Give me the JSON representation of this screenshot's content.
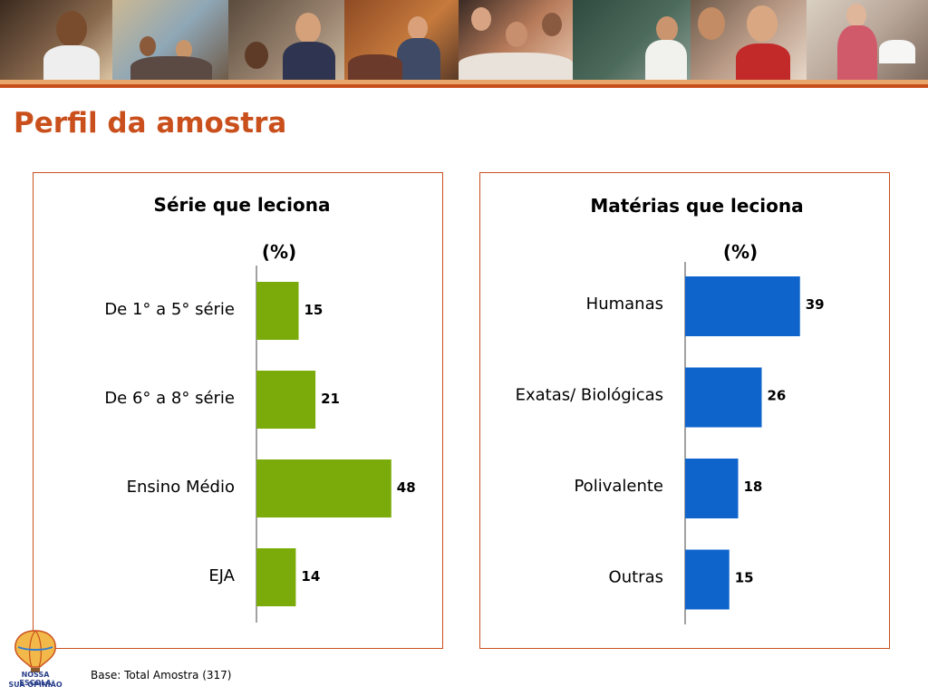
{
  "slide": {
    "title": "Perfil da amostra",
    "base_note": "Base: Total Amostra (317)"
  },
  "logo": {
    "icon": "hot-air-balloon-icon",
    "line1": "NOSSA ESCOLA",
    "line2": "SUA OPINIÃO"
  },
  "colors": {
    "accent": "#c9501c",
    "green_bar": "#7aab0a",
    "blue_bar": "#0f64cc"
  },
  "chart_data": [
    {
      "type": "bar",
      "orientation": "horizontal",
      "title": "Série que leciona",
      "unit": "(%)",
      "categories": [
        "De 1° a 5° série",
        "De 6° a 8° série",
        "Ensino Médio",
        "EJA"
      ],
      "values": [
        15,
        21,
        48,
        14
      ],
      "color": "#7aab0a",
      "data_labels": true
    },
    {
      "type": "bar",
      "orientation": "horizontal",
      "title": "Matérias que leciona",
      "unit": "(%)",
      "categories": [
        "Humanas",
        "Exatas/ Biológicas",
        "Polivalente",
        "Outras"
      ],
      "values": [
        39,
        26,
        18,
        15
      ],
      "color": "#0f64cc",
      "data_labels": true
    }
  ]
}
